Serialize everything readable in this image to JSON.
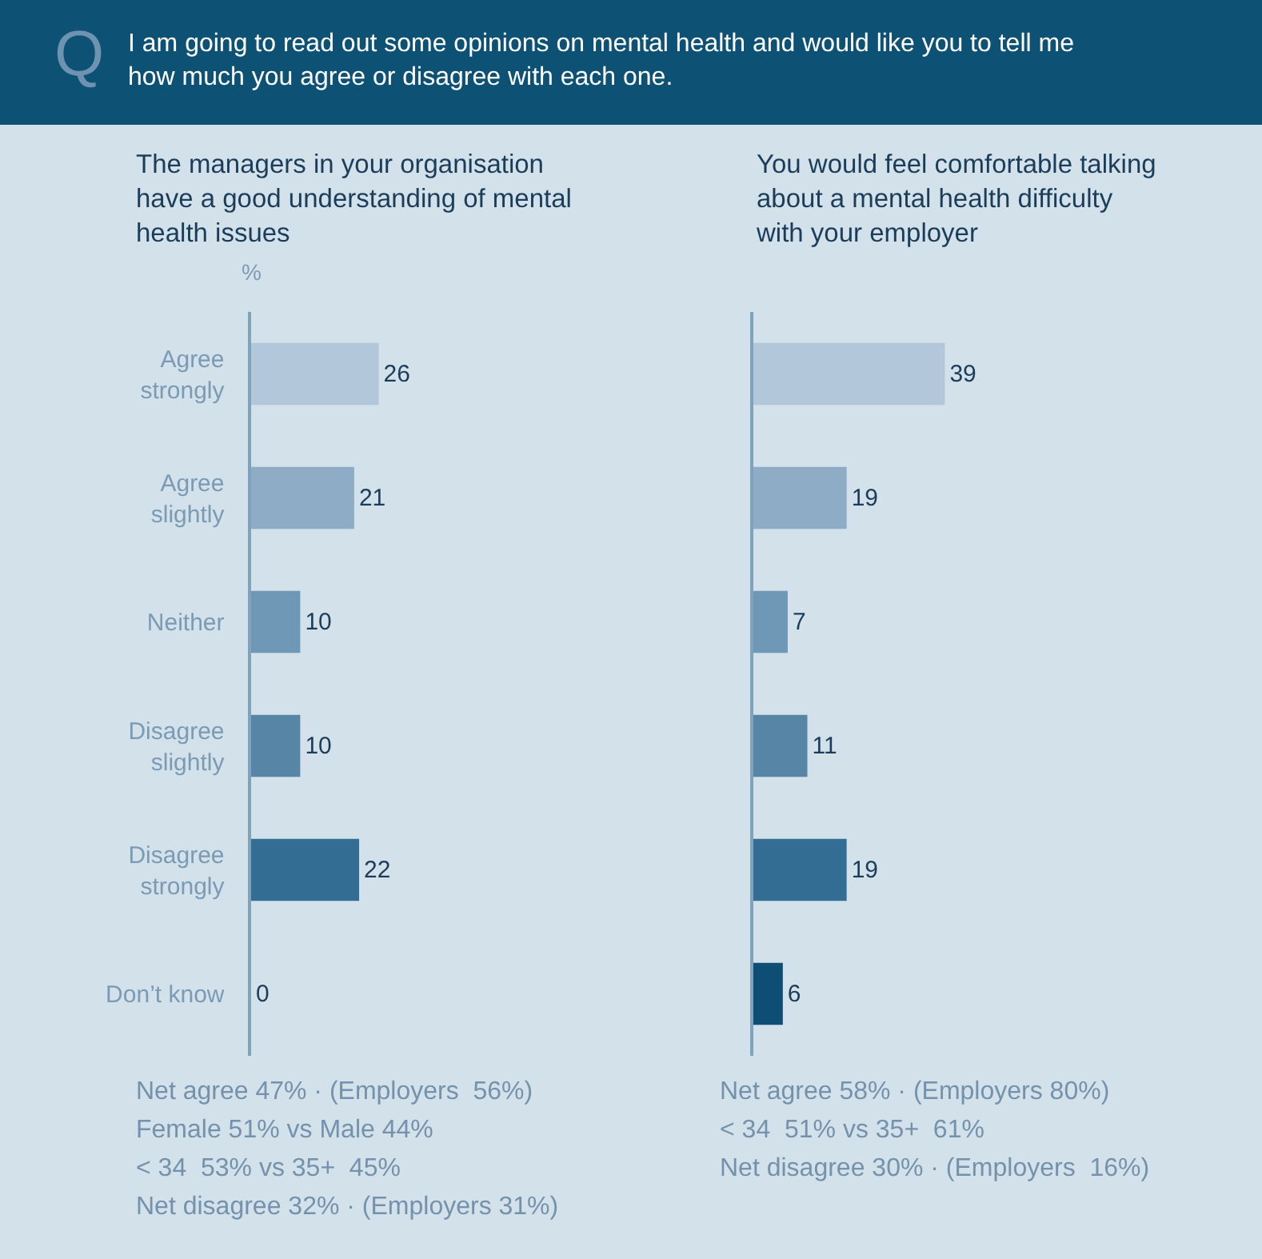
{
  "chart_data": [
    {
      "type": "other",
      "title": "I am going to read out some opinions on mental health and would like you to tell me how much you agree or disagree with each one.",
      "annotations": [
        "Q"
      ]
    },
    {
      "type": "bar",
      "orientation": "horizontal",
      "title": "The managers in your organisation have a good understanding of mental health issues",
      "xlabel": "%",
      "categories": [
        "Agree strongly",
        "Agree slightly",
        "Neither",
        "Disagree slightly",
        "Disagree strongly",
        "Don’t know"
      ],
      "values": [
        26,
        21,
        10,
        10,
        22,
        0
      ],
      "colors": [
        "#b2c7d9",
        "#8eacc5",
        "#6f97b6",
        "#5785a6",
        "#336d93",
        "#0e4e74"
      ],
      "data_labels": true,
      "tick_labels": "y",
      "annotations": [
        "Net agree 47% · (Employers  56%)",
        "Female 51% vs Male 44%",
        "< 34  53% vs 35+  45%",
        "Net disagree 32% · (Employers 31%)"
      ]
    },
    {
      "type": "bar",
      "orientation": "horizontal",
      "title": "You would feel comfortable talking about a mental health difficulty with your employer",
      "categories": [
        "Agree strongly",
        "Agree slightly",
        "Neither",
        "Disagree slightly",
        "Disagree strongly",
        "Don’t know"
      ],
      "values": [
        39,
        19,
        7,
        11,
        19,
        6
      ],
      "colors": [
        "#b2c7d9",
        "#8eacc5",
        "#6f97b6",
        "#5785a6",
        "#336d93",
        "#0e4e74"
      ],
      "data_labels": true,
      "tick_labels": false,
      "annotations": [
        "Net agree 58% · (Employers 80%)",
        "< 34  51% vs 35+  61%",
        "Net disagree 30% · (Employers  16%)"
      ]
    }
  ]
}
